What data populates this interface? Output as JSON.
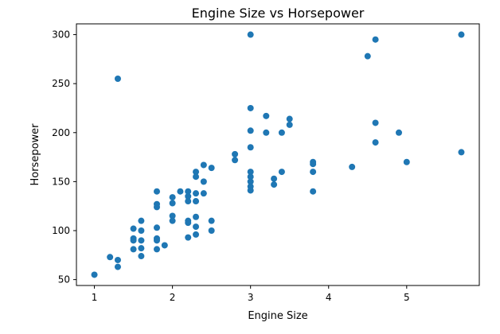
{
  "chart_data": {
    "type": "scatter",
    "title": "Engine Size vs Horsepower",
    "xlabel": "Engine Size",
    "ylabel": "Horsepower",
    "xlim": [
      0.77,
      5.93
    ],
    "ylim": [
      44,
      311
    ],
    "xticks": [
      1,
      2,
      3,
      4,
      5
    ],
    "yticks": [
      50,
      100,
      150,
      200,
      250,
      300
    ],
    "grid": false,
    "marker_color": "#1f77b4",
    "points": [
      {
        "x": 1.0,
        "y": 55
      },
      {
        "x": 1.2,
        "y": 73
      },
      {
        "x": 1.3,
        "y": 70
      },
      {
        "x": 1.3,
        "y": 63
      },
      {
        "x": 1.3,
        "y": 255
      },
      {
        "x": 1.5,
        "y": 102
      },
      {
        "x": 1.5,
        "y": 92
      },
      {
        "x": 1.5,
        "y": 90
      },
      {
        "x": 1.5,
        "y": 81
      },
      {
        "x": 1.6,
        "y": 110
      },
      {
        "x": 1.6,
        "y": 100
      },
      {
        "x": 1.6,
        "y": 90
      },
      {
        "x": 1.6,
        "y": 82
      },
      {
        "x": 1.6,
        "y": 74
      },
      {
        "x": 1.8,
        "y": 140
      },
      {
        "x": 1.8,
        "y": 127
      },
      {
        "x": 1.8,
        "y": 124
      },
      {
        "x": 1.8,
        "y": 103
      },
      {
        "x": 1.8,
        "y": 92
      },
      {
        "x": 1.8,
        "y": 90
      },
      {
        "x": 1.8,
        "y": 81
      },
      {
        "x": 1.9,
        "y": 85
      },
      {
        "x": 2.0,
        "y": 134
      },
      {
        "x": 2.0,
        "y": 128
      },
      {
        "x": 2.0,
        "y": 115
      },
      {
        "x": 2.0,
        "y": 110
      },
      {
        "x": 2.1,
        "y": 140
      },
      {
        "x": 2.2,
        "y": 140
      },
      {
        "x": 2.2,
        "y": 135
      },
      {
        "x": 2.2,
        "y": 130
      },
      {
        "x": 2.2,
        "y": 110
      },
      {
        "x": 2.2,
        "y": 108
      },
      {
        "x": 2.2,
        "y": 93
      },
      {
        "x": 2.3,
        "y": 160
      },
      {
        "x": 2.3,
        "y": 155
      },
      {
        "x": 2.3,
        "y": 138
      },
      {
        "x": 2.3,
        "y": 130
      },
      {
        "x": 2.3,
        "y": 114
      },
      {
        "x": 2.3,
        "y": 104
      },
      {
        "x": 2.3,
        "y": 96
      },
      {
        "x": 2.4,
        "y": 167
      },
      {
        "x": 2.4,
        "y": 150
      },
      {
        "x": 2.4,
        "y": 138
      },
      {
        "x": 2.5,
        "y": 164
      },
      {
        "x": 2.5,
        "y": 110
      },
      {
        "x": 2.5,
        "y": 100
      },
      {
        "x": 2.8,
        "y": 178
      },
      {
        "x": 2.8,
        "y": 172
      },
      {
        "x": 3.0,
        "y": 300
      },
      {
        "x": 3.0,
        "y": 225
      },
      {
        "x": 3.0,
        "y": 202
      },
      {
        "x": 3.0,
        "y": 185
      },
      {
        "x": 3.0,
        "y": 160
      },
      {
        "x": 3.0,
        "y": 155
      },
      {
        "x": 3.0,
        "y": 150
      },
      {
        "x": 3.0,
        "y": 145
      },
      {
        "x": 3.0,
        "y": 141
      },
      {
        "x": 3.2,
        "y": 217
      },
      {
        "x": 3.2,
        "y": 200
      },
      {
        "x": 3.3,
        "y": 153
      },
      {
        "x": 3.3,
        "y": 147
      },
      {
        "x": 3.4,
        "y": 200
      },
      {
        "x": 3.4,
        "y": 160
      },
      {
        "x": 3.5,
        "y": 214
      },
      {
        "x": 3.5,
        "y": 208
      },
      {
        "x": 3.8,
        "y": 170
      },
      {
        "x": 3.8,
        "y": 168
      },
      {
        "x": 3.8,
        "y": 160
      },
      {
        "x": 3.8,
        "y": 140
      },
      {
        "x": 4.3,
        "y": 165
      },
      {
        "x": 4.5,
        "y": 278
      },
      {
        "x": 4.6,
        "y": 295
      },
      {
        "x": 4.6,
        "y": 210
      },
      {
        "x": 4.6,
        "y": 190
      },
      {
        "x": 4.9,
        "y": 200
      },
      {
        "x": 5.0,
        "y": 170
      },
      {
        "x": 5.7,
        "y": 300
      },
      {
        "x": 5.7,
        "y": 180
      }
    ]
  }
}
